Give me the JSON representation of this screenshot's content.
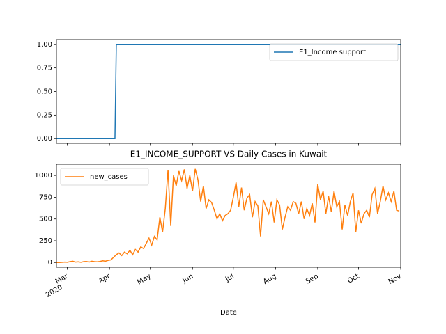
{
  "chart_data": [
    {
      "type": "line",
      "xlim": [
        -8,
        245
      ],
      "ylim": [
        -0.05,
        1.05
      ],
      "yticks": [
        {
          "value": 0,
          "label": "0.00"
        },
        {
          "value": 0.25,
          "label": "0.25"
        },
        {
          "value": 0.5,
          "label": "0.50"
        },
        {
          "value": 0.75,
          "label": "0.75"
        },
        {
          "value": 1,
          "label": "1.00"
        }
      ],
      "legend": "upper right",
      "series": [
        {
          "name": "E1_Income support",
          "color": "#1f77b4",
          "x": [
            -8,
            35,
            36,
            245
          ],
          "values": [
            0,
            0,
            1,
            1
          ]
        }
      ]
    },
    {
      "type": "line",
      "title": "E1_INCOME_SUPPORT VS Daily Cases in Kuwait",
      "x_label": "Date",
      "x_year_label": "2020",
      "xlim": [
        -8,
        245
      ],
      "ylim": [
        -54,
        1129
      ],
      "xticks": [
        {
          "value": 0,
          "label": "Mar"
        },
        {
          "value": 31,
          "label": "Apr"
        },
        {
          "value": 61,
          "label": "May"
        },
        {
          "value": 92,
          "label": "Jun"
        },
        {
          "value": 122,
          "label": "Jul"
        },
        {
          "value": 153,
          "label": "Aug"
        },
        {
          "value": 184,
          "label": "Sep"
        },
        {
          "value": 214,
          "label": "Oct"
        },
        {
          "value": 245,
          "label": "Nov"
        }
      ],
      "yticks": [
        0,
        250,
        500,
        750,
        1000
      ],
      "legend": "upper left",
      "series": [
        {
          "name": "new_cases",
          "color": "#ff7f0e",
          "x": [
            -8,
            -6,
            -4,
            -2,
            0,
            2,
            4,
            6,
            8,
            10,
            12,
            14,
            16,
            18,
            20,
            22,
            24,
            26,
            28,
            30,
            32,
            34,
            36,
            38,
            40,
            42,
            44,
            46,
            48,
            50,
            52,
            54,
            56,
            58,
            60,
            62,
            64,
            66,
            68,
            70,
            72,
            74,
            76,
            78,
            80,
            82,
            84,
            86,
            88,
            90,
            92,
            94,
            96,
            98,
            100,
            102,
            104,
            106,
            108,
            110,
            112,
            114,
            116,
            118,
            120,
            122,
            124,
            126,
            128,
            130,
            132,
            134,
            136,
            138,
            140,
            142,
            144,
            146,
            148,
            150,
            152,
            154,
            156,
            158,
            160,
            162,
            164,
            166,
            168,
            170,
            172,
            174,
            176,
            178,
            180,
            182,
            184,
            186,
            188,
            190,
            192,
            194,
            196,
            198,
            200,
            202,
            204,
            206,
            208,
            210,
            212,
            214,
            216,
            218,
            220,
            222,
            224,
            226,
            228,
            230,
            232,
            234,
            236,
            238,
            240,
            242,
            244
          ],
          "values": [
            0,
            0,
            2,
            5,
            3,
            10,
            15,
            5,
            8,
            3,
            10,
            12,
            5,
            15,
            10,
            8,
            12,
            20,
            15,
            25,
            30,
            60,
            90,
            110,
            80,
            120,
            100,
            140,
            90,
            150,
            120,
            180,
            160,
            220,
            280,
            200,
            300,
            260,
            520,
            350,
            620,
            1065,
            420,
            1000,
            880,
            1050,
            940,
            1070,
            850,
            1000,
            820,
            1075,
            950,
            700,
            880,
            620,
            720,
            690,
            600,
            500,
            560,
            480,
            540,
            560,
            600,
            750,
            920,
            640,
            860,
            600,
            740,
            780,
            520,
            700,
            650,
            300,
            720,
            640,
            560,
            700,
            460,
            720,
            660,
            380,
            520,
            640,
            600,
            700,
            680,
            560,
            700,
            500,
            620,
            540,
            680,
            460,
            900,
            720,
            820,
            560,
            760,
            580,
            820,
            640,
            700,
            380,
            660,
            540,
            700,
            800,
            350,
            600,
            450,
            560,
            600,
            520,
            780,
            850,
            560,
            700,
            880,
            720,
            800,
            700,
            820,
            600,
            590
          ]
        }
      ]
    }
  ]
}
